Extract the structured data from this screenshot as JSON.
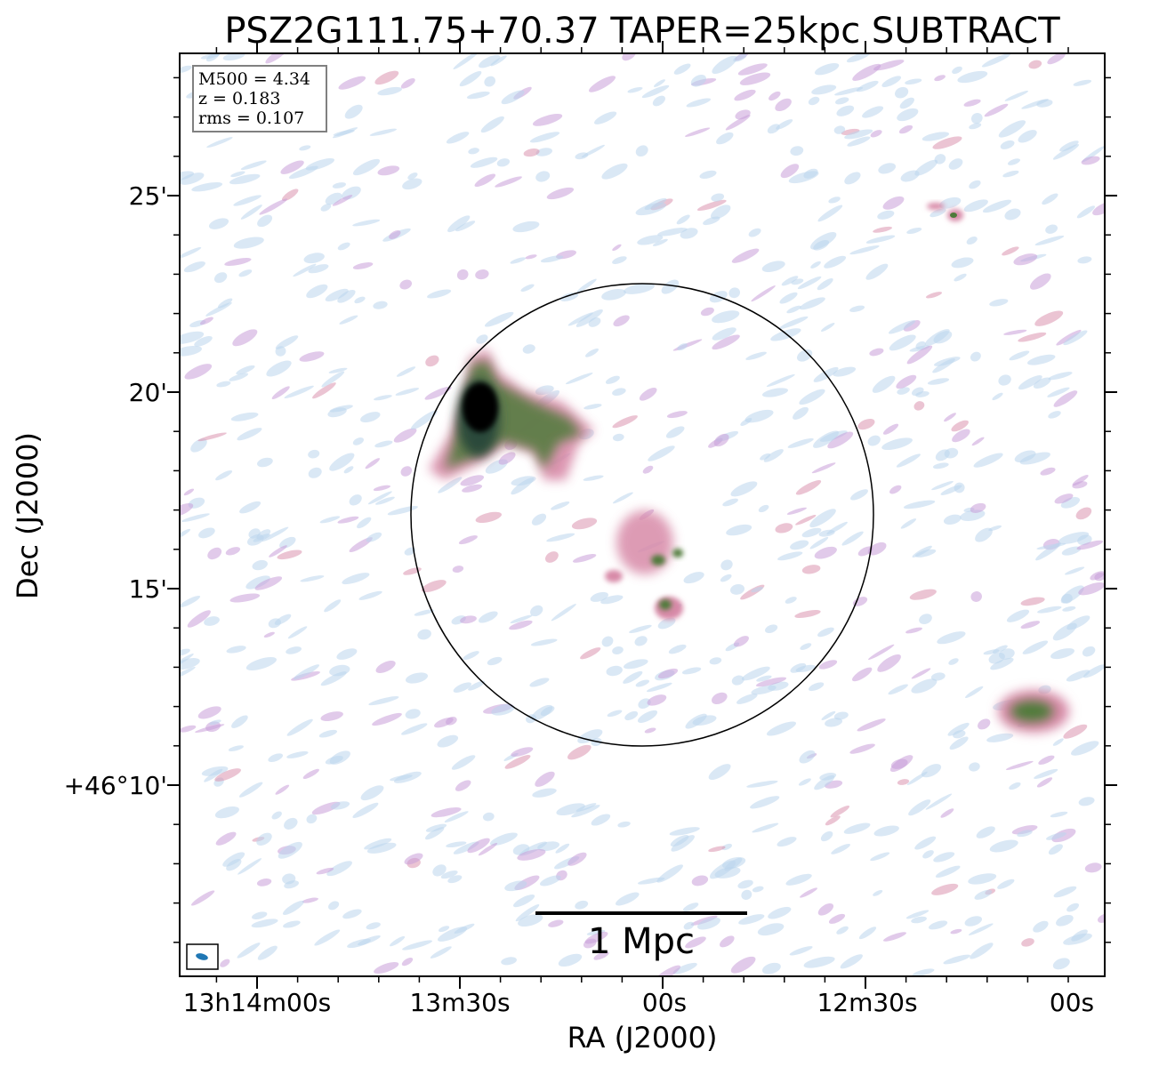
{
  "title": "PSZ2G111.75+70.37 TAPER=25kpc SUBTRACT",
  "info_box": {
    "line1": "M500 = 4.34",
    "line2": "z = 0.183",
    "line3": "rms = 0.107"
  },
  "x_axis": {
    "label": "RA (J2000)",
    "ticks": [
      "13h14m00s",
      "13m30s",
      "00s",
      "12m30s",
      "00s"
    ]
  },
  "y_axis": {
    "label": "Dec (J2000)",
    "ticks": [
      "25'",
      "20'",
      "15'",
      "+46°10'"
    ]
  },
  "scale_bar": {
    "label": "1 Mpc"
  },
  "colors": {
    "faint_emission": "#bcd6ec",
    "mid_emission": "#c99fd8",
    "pink_emission": "#d88aa8",
    "green_emission": "#4f7a3a",
    "peak_emission": "#000000",
    "beam_fill": "#1f77b4",
    "r500_circle": "#000000"
  }
}
